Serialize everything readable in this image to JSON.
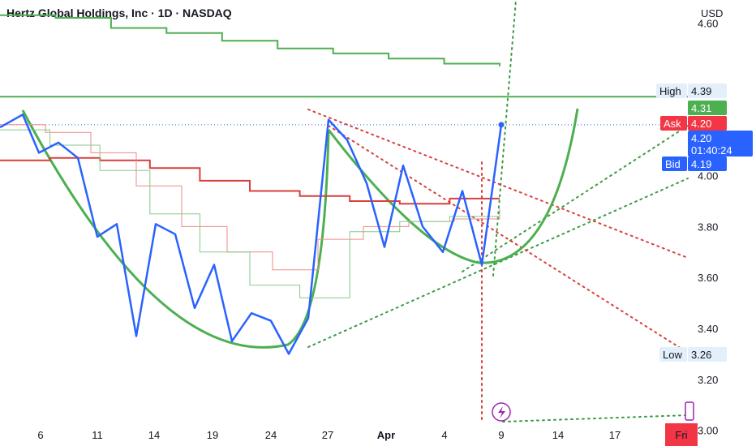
{
  "chart_data": {
    "type": "line",
    "title": "Hertz Global Holdings, Inc · 1D · NASDAQ",
    "currency": "USD",
    "ylim": [
      2.97,
      4.69
    ],
    "y_ticks": [
      "4.60",
      "4.00",
      "3.80",
      "3.60",
      "3.40",
      "3.20",
      "3.00"
    ],
    "x_ticks": [
      "6",
      "11",
      "14",
      "19",
      "24",
      "27",
      "Apr",
      "4",
      "9",
      "14",
      "17",
      "Fri"
    ],
    "labels": {
      "high_label": "High",
      "high_value": "4.39",
      "level_value": "4.31",
      "ask_label": "Ask",
      "ask_value": "4.20",
      "last_value": "4.20",
      "countdown": "01:40:24",
      "bid_label": "Bid",
      "bid_value": "4.19",
      "low_label": "Low",
      "low_value": "3.26"
    },
    "series": [
      {
        "values": [
          4.19,
          4.24,
          4.09,
          4.13,
          4.07,
          3.76,
          3.81,
          3.37,
          3.81,
          3.77,
          3.48,
          3.65,
          3.35,
          3.46,
          3.43,
          3.3,
          3.44,
          4.22,
          4.14,
          3.97,
          3.72,
          4.04,
          3.8,
          3.7,
          3.94,
          3.65,
          4.2
        ]
      },
      {
        "values": [
          4.63,
          4.62,
          4.58,
          4.56,
          4.53,
          4.5,
          4.48,
          4.46,
          4.44,
          4.43
        ]
      },
      {
        "values": [
          4.06,
          4.07,
          4.06,
          4.03,
          3.98,
          3.94,
          3.92,
          3.9,
          3.89,
          3.91,
          3.91
        ]
      },
      {
        "values": [
          4.2,
          4.17,
          4.09,
          3.96,
          3.8,
          3.7,
          3.63,
          3.75,
          3.8,
          3.82,
          3.83,
          3.87
        ]
      },
      {
        "values": [
          4.18,
          4.12,
          4.02,
          3.85,
          3.7,
          3.57,
          3.52,
          3.78,
          3.82,
          3.84,
          3.85
        ]
      }
    ]
  }
}
